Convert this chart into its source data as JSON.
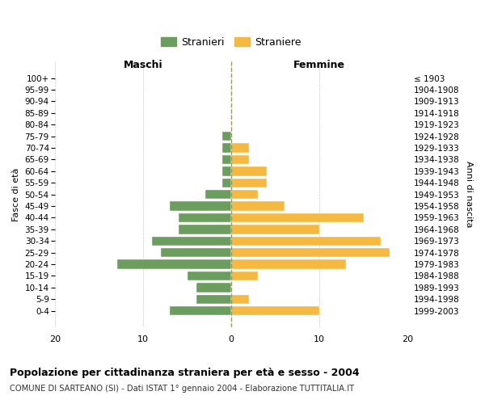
{
  "age_groups": [
    "0-4",
    "5-9",
    "10-14",
    "15-19",
    "20-24",
    "25-29",
    "30-34",
    "35-39",
    "40-44",
    "45-49",
    "50-54",
    "55-59",
    "60-64",
    "65-69",
    "70-74",
    "75-79",
    "80-84",
    "85-89",
    "90-94",
    "95-99",
    "100+"
  ],
  "birth_years": [
    "1999-2003",
    "1994-1998",
    "1989-1993",
    "1984-1988",
    "1979-1983",
    "1974-1978",
    "1969-1973",
    "1964-1968",
    "1959-1963",
    "1954-1958",
    "1949-1953",
    "1944-1948",
    "1939-1943",
    "1934-1938",
    "1929-1933",
    "1924-1928",
    "1919-1923",
    "1914-1918",
    "1909-1913",
    "1904-1908",
    "≤ 1903"
  ],
  "males": [
    7,
    4,
    4,
    5,
    13,
    8,
    9,
    6,
    6,
    7,
    3,
    1,
    1,
    1,
    1,
    1,
    0,
    0,
    0,
    0,
    0
  ],
  "females": [
    10,
    2,
    0,
    3,
    13,
    18,
    17,
    10,
    15,
    6,
    3,
    4,
    4,
    2,
    2,
    0,
    0,
    0,
    0,
    0,
    0
  ],
  "male_color": "#6b9e5e",
  "female_color": "#f5b942",
  "background_color": "#ffffff",
  "grid_color": "#cccccc",
  "title": "Popolazione per cittadinanza straniera per età e sesso - 2004",
  "subtitle": "COMUNE DI SARTEANO (SI) - Dati ISTAT 1° gennaio 2004 - Elaborazione TUTTITALIA.IT",
  "xlabel_left": "Maschi",
  "xlabel_right": "Femmine",
  "ylabel_left": "Fasce di età",
  "ylabel_right": "Anni di nascita",
  "legend_male": "Stranieri",
  "legend_female": "Straniere",
  "xlim": 20
}
